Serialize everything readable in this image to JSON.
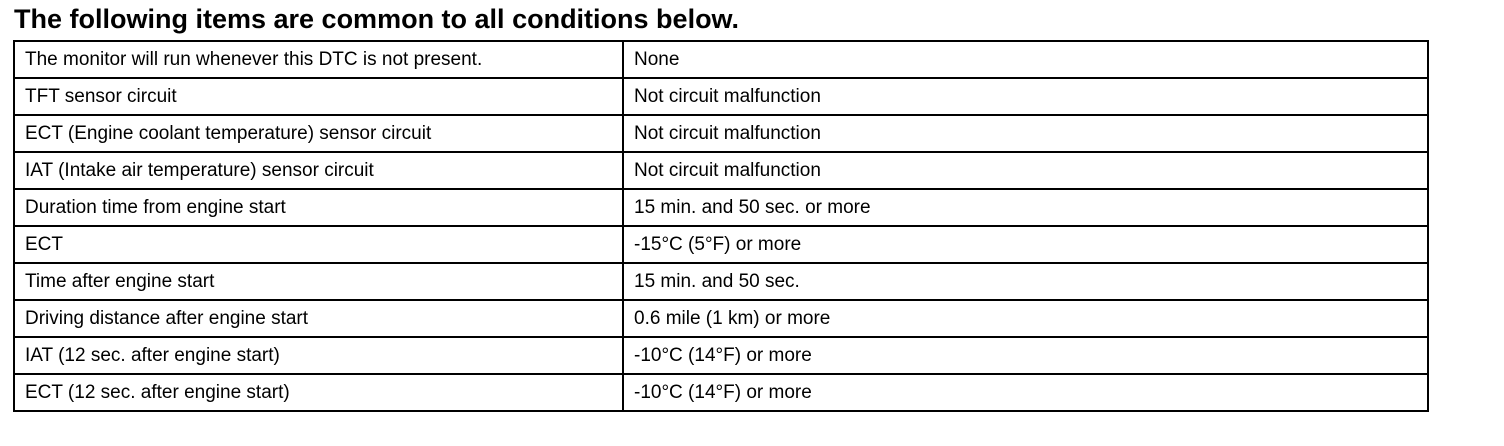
{
  "header": {
    "title": "The following items are common to all conditions below."
  },
  "table": {
    "rows": [
      [
        "The monitor will run whenever this DTC is not present.",
        "None"
      ],
      [
        "TFT sensor circuit",
        "Not circuit malfunction"
      ],
      [
        "ECT (Engine coolant temperature) sensor circuit",
        "Not circuit malfunction"
      ],
      [
        "IAT (Intake air temperature) sensor circuit",
        "Not circuit malfunction"
      ],
      [
        "Duration time from engine start",
        "15 min. and 50 sec. or more"
      ],
      [
        "ECT",
        "-15°C (5°F) or more"
      ],
      [
        "Time after engine start",
        "15 min. and 50 sec."
      ],
      [
        "Driving distance after engine start",
        "0.6 mile (1 km) or more"
      ],
      [
        "IAT (12 sec. after engine start)",
        "-10°C (14°F) or more"
      ],
      [
        "ECT (12 sec. after engine start)",
        "-10°C (14°F) or more"
      ]
    ]
  }
}
